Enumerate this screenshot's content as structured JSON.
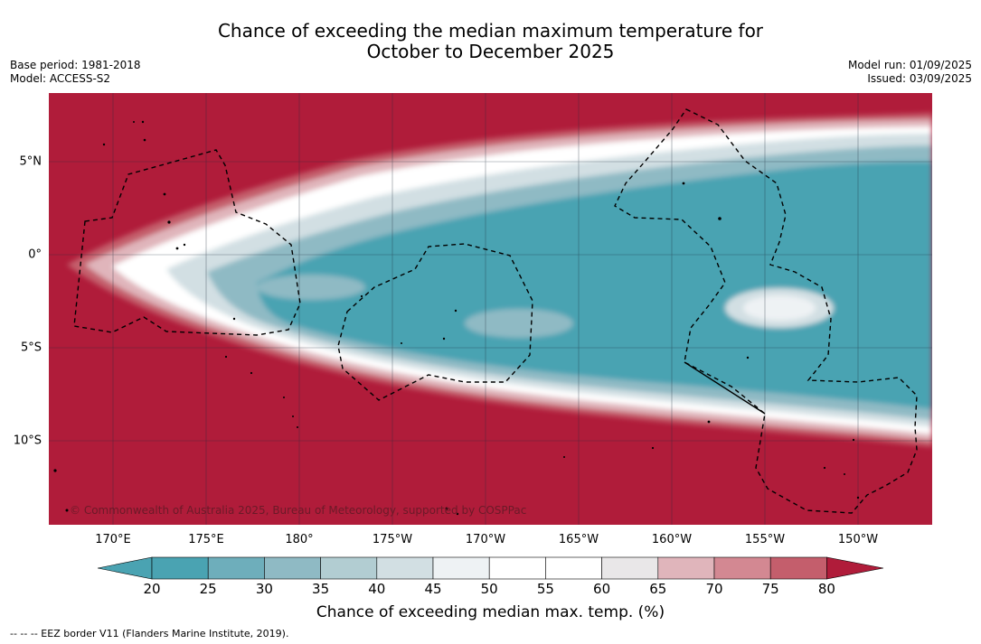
{
  "title": {
    "line1": "Chance of exceeding the median maximum temperature for",
    "line2": "October to December 2025"
  },
  "meta_left": {
    "base_period": "Base period: 1981-2018",
    "model": "Model: ACCESS-S2"
  },
  "meta_right": {
    "model_run": "Model run: 01/09/2025",
    "issued": "Issued: 03/09/2025"
  },
  "map": {
    "longitude_labels": [
      "170°E",
      "175°E",
      "180°",
      "175°W",
      "170°W",
      "165°W",
      "160°W",
      "155°W",
      "150°W"
    ],
    "latitude_labels": [
      "5°N",
      "0°",
      "5°S",
      "10°S"
    ],
    "copyright": "© Commonwealth of Australia 2025, Bureau of Meteorology, supported by COSPPac",
    "region_note": "Below-median band (20-40%) across the equatorial Pacific; above-median (80%+) north and south"
  },
  "colorbar": {
    "ticks": [
      "20",
      "25",
      "30",
      "35",
      "40",
      "45",
      "50",
      "55",
      "60",
      "65",
      "70",
      "75",
      "80"
    ],
    "colors": [
      "#4aa3b2",
      "#6eaebb",
      "#8fbac4",
      "#b2cdd2",
      "#d2dfe3",
      "#eef2f4",
      "#ffffff",
      "#ffffff",
      "#e9e7e8",
      "#e0b5bb",
      "#d38892",
      "#c45e6c",
      "#b93a4c"
    ],
    "low_color": "#4aa3b2",
    "high_color": "#b01c3a",
    "title": "Chance of exceeding median max. temp. (%)"
  },
  "legend_note": "-- -- -- EEZ border V11 (Flanders Marine Institute, 2019)."
}
